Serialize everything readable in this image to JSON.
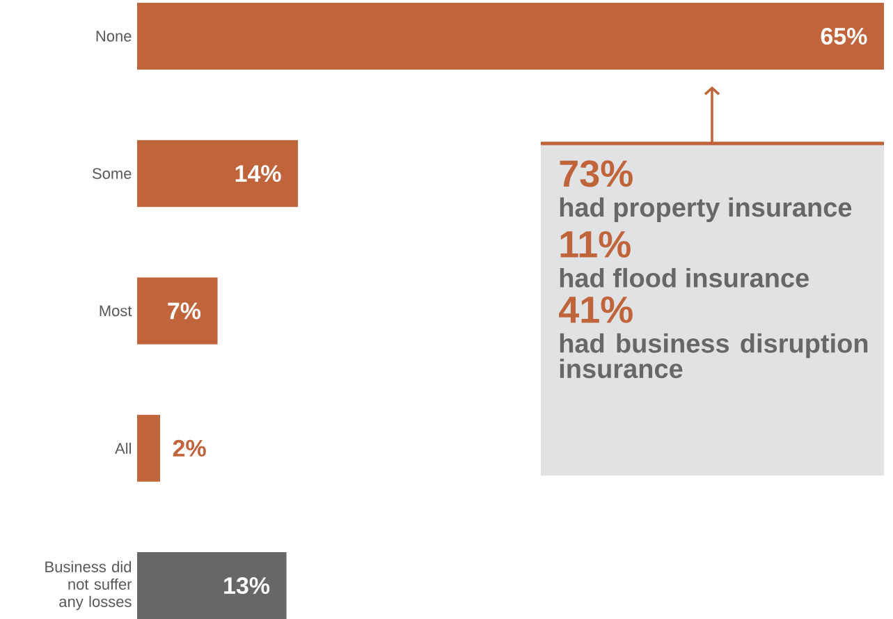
{
  "chart_data": {
    "type": "bar",
    "orientation": "horizontal",
    "categories": [
      "None",
      "Some",
      "Most",
      "All",
      "Business did not suffer any losses"
    ],
    "values": [
      65,
      14,
      7,
      2,
      13
    ],
    "colors": [
      "#c0643b",
      "#c0643b",
      "#c0643b",
      "#c0643b",
      "#666866"
    ],
    "value_labels": [
      "65%",
      "14%",
      "7%",
      "2%",
      "13%"
    ],
    "tick_labels": "y",
    "annotations": [
      "73%",
      "had property insurance",
      "11%",
      "had flood insurance",
      "41%",
      "had business disruption insurance"
    ]
  }
}
